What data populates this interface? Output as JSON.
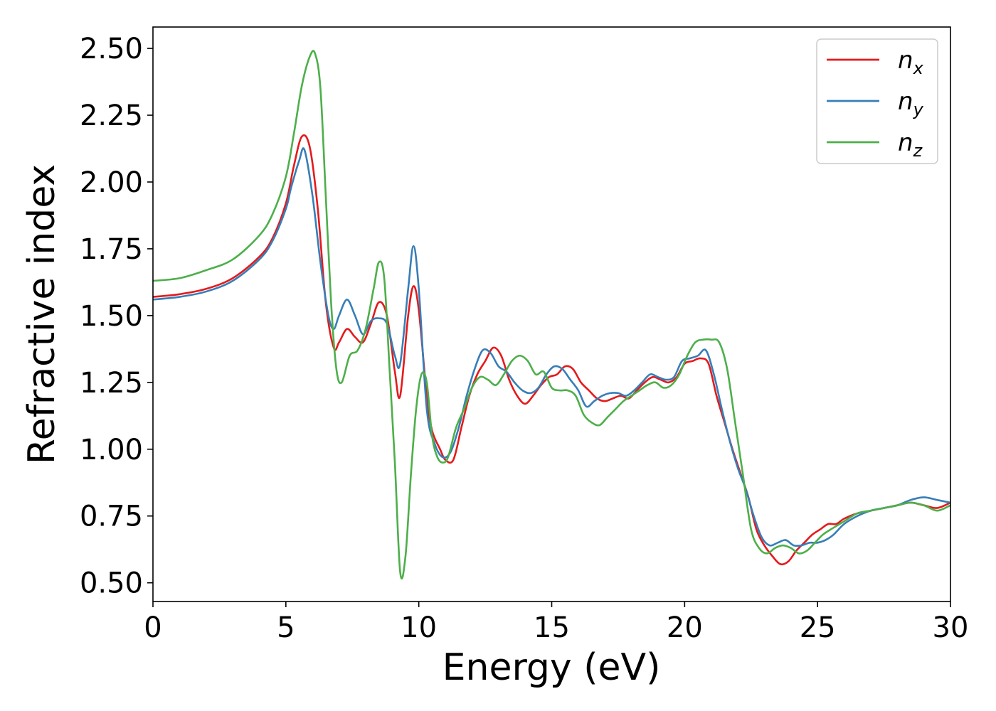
{
  "chart_data": {
    "type": "line",
    "title": "",
    "xlabel": "Energy (eV)",
    "ylabel": "Refractive index",
    "xlim": [
      0,
      30
    ],
    "ylim": [
      0.43,
      2.58
    ],
    "xticks": [
      0,
      5,
      10,
      15,
      20,
      25,
      30
    ],
    "xtick_labels": [
      "0",
      "5",
      "10",
      "15",
      "20",
      "25",
      "30"
    ],
    "yticks": [
      0.5,
      0.75,
      1.0,
      1.25,
      1.5,
      1.75,
      2.0,
      2.25,
      2.5
    ],
    "ytick_labels": [
      "0.50",
      "0.75",
      "1.00",
      "1.25",
      "1.50",
      "1.75",
      "2.00",
      "2.25",
      "2.50"
    ],
    "grid": false,
    "legend_position": "top-right",
    "series": [
      {
        "name": "n",
        "subscript": "x",
        "color": "#e41a1c",
        "x": [
          0,
          1,
          2,
          3,
          4,
          4.5,
          5,
          5.3,
          5.6,
          5.9,
          6.2,
          6.5,
          6.8,
          7.0,
          7.3,
          7.6,
          7.9,
          8.2,
          8.5,
          8.8,
          9.1,
          9.3,
          9.6,
          9.8,
          10.0,
          10.3,
          10.5,
          10.8,
          11.0,
          11.3,
          11.6,
          11.9,
          12.2,
          12.5,
          12.8,
          13.1,
          13.4,
          13.7,
          14.0,
          14.3,
          14.6,
          14.9,
          15.2,
          15.5,
          15.8,
          16.1,
          16.4,
          16.7,
          17.0,
          17.3,
          17.6,
          17.9,
          18.2,
          18.5,
          18.8,
          19.1,
          19.4,
          19.7,
          20.0,
          20.3,
          20.6,
          20.9,
          21.2,
          21.5,
          21.8,
          22.1,
          22.4,
          22.7,
          23.0,
          23.3,
          23.6,
          23.9,
          24.2,
          24.5,
          24.8,
          25.1,
          25.4,
          25.7,
          26.0,
          26.5,
          27.0,
          27.5,
          28.0,
          28.5,
          29.0,
          29.5,
          30.0
        ],
        "y": [
          1.57,
          1.58,
          1.6,
          1.64,
          1.72,
          1.79,
          1.92,
          2.06,
          2.17,
          2.13,
          1.9,
          1.55,
          1.38,
          1.4,
          1.45,
          1.42,
          1.4,
          1.47,
          1.55,
          1.5,
          1.29,
          1.2,
          1.5,
          1.61,
          1.52,
          1.2,
          1.07,
          1.0,
          0.96,
          0.96,
          1.08,
          1.2,
          1.28,
          1.33,
          1.38,
          1.35,
          1.26,
          1.2,
          1.17,
          1.2,
          1.24,
          1.27,
          1.28,
          1.31,
          1.3,
          1.25,
          1.22,
          1.19,
          1.18,
          1.19,
          1.2,
          1.19,
          1.22,
          1.25,
          1.27,
          1.26,
          1.25,
          1.27,
          1.32,
          1.33,
          1.34,
          1.32,
          1.2,
          1.1,
          1.0,
          0.91,
          0.82,
          0.7,
          0.64,
          0.6,
          0.57,
          0.58,
          0.62,
          0.65,
          0.68,
          0.7,
          0.72,
          0.72,
          0.74,
          0.76,
          0.77,
          0.78,
          0.79,
          0.8,
          0.79,
          0.78,
          0.8
        ]
      },
      {
        "name": "n",
        "subscript": "y",
        "color": "#377eb8",
        "x": [
          0,
          1,
          2,
          3,
          4,
          4.5,
          5,
          5.2,
          5.5,
          5.7,
          6.0,
          6.3,
          6.6,
          6.8,
          7.0,
          7.3,
          7.6,
          7.9,
          8.2,
          8.5,
          8.8,
          9.1,
          9.3,
          9.6,
          9.8,
          10.0,
          10.3,
          10.6,
          10.9,
          11.2,
          11.5,
          11.8,
          12.1,
          12.4,
          12.7,
          13.0,
          13.3,
          13.6,
          13.9,
          14.2,
          14.5,
          14.8,
          15.1,
          15.4,
          15.7,
          16.0,
          16.3,
          16.6,
          16.9,
          17.2,
          17.5,
          17.8,
          18.1,
          18.4,
          18.7,
          19.0,
          19.3,
          19.6,
          19.9,
          20.2,
          20.5,
          20.8,
          21.1,
          21.4,
          21.7,
          22.0,
          22.3,
          22.6,
          22.9,
          23.2,
          23.5,
          23.8,
          24.1,
          24.4,
          24.7,
          25.0,
          25.3,
          25.6,
          26.0,
          26.5,
          27.0,
          27.5,
          28.0,
          28.5,
          29.0,
          29.5,
          30.0
        ],
        "y": [
          1.56,
          1.57,
          1.59,
          1.63,
          1.71,
          1.78,
          1.9,
          1.98,
          2.08,
          2.12,
          1.95,
          1.7,
          1.5,
          1.45,
          1.5,
          1.56,
          1.5,
          1.43,
          1.48,
          1.49,
          1.47,
          1.35,
          1.32,
          1.6,
          1.76,
          1.6,
          1.15,
          1.02,
          0.97,
          0.99,
          1.08,
          1.2,
          1.3,
          1.37,
          1.36,
          1.31,
          1.29,
          1.25,
          1.22,
          1.21,
          1.23,
          1.28,
          1.31,
          1.3,
          1.26,
          1.22,
          1.16,
          1.18,
          1.2,
          1.21,
          1.21,
          1.2,
          1.22,
          1.25,
          1.28,
          1.27,
          1.26,
          1.27,
          1.33,
          1.34,
          1.35,
          1.37,
          1.28,
          1.15,
          1.03,
          0.93,
          0.85,
          0.75,
          0.67,
          0.64,
          0.65,
          0.66,
          0.64,
          0.64,
          0.65,
          0.65,
          0.66,
          0.68,
          0.72,
          0.75,
          0.77,
          0.78,
          0.79,
          0.81,
          0.82,
          0.81,
          0.8
        ]
      },
      {
        "name": "n",
        "subscript": "z",
        "color": "#4daf4a",
        "x": [
          0,
          1,
          2,
          3,
          4,
          4.5,
          5,
          5.3,
          5.6,
          5.9,
          6.1,
          6.3,
          6.5,
          6.7,
          6.9,
          7.1,
          7.4,
          7.7,
          8.0,
          8.3,
          8.5,
          8.7,
          8.9,
          9.1,
          9.3,
          9.5,
          9.7,
          9.9,
          10.1,
          10.3,
          10.5,
          10.7,
          10.9,
          11.1,
          11.4,
          11.7,
          12.0,
          12.3,
          12.6,
          12.9,
          13.2,
          13.5,
          13.8,
          14.1,
          14.4,
          14.7,
          15.0,
          15.3,
          15.6,
          15.9,
          16.2,
          16.5,
          16.8,
          17.1,
          17.4,
          17.7,
          18.0,
          18.3,
          18.6,
          18.9,
          19.2,
          19.5,
          19.8,
          20.1,
          20.4,
          20.7,
          21.0,
          21.3,
          21.6,
          21.9,
          22.2,
          22.5,
          22.8,
          23.1,
          23.4,
          23.7,
          24.0,
          24.3,
          24.6,
          24.9,
          25.2,
          25.5,
          26.0,
          26.5,
          27.0,
          27.5,
          28.0,
          28.5,
          29.0,
          29.5,
          30.0
        ],
        "y": [
          1.63,
          1.64,
          1.67,
          1.71,
          1.8,
          1.88,
          2.02,
          2.18,
          2.36,
          2.47,
          2.48,
          2.35,
          1.95,
          1.55,
          1.3,
          1.25,
          1.35,
          1.37,
          1.45,
          1.6,
          1.7,
          1.64,
          1.3,
          0.95,
          0.54,
          0.6,
          0.9,
          1.15,
          1.28,
          1.25,
          1.05,
          0.97,
          0.95,
          0.97,
          1.08,
          1.15,
          1.23,
          1.27,
          1.26,
          1.24,
          1.28,
          1.33,
          1.35,
          1.33,
          1.28,
          1.29,
          1.23,
          1.22,
          1.22,
          1.2,
          1.13,
          1.1,
          1.09,
          1.12,
          1.15,
          1.18,
          1.2,
          1.22,
          1.24,
          1.25,
          1.23,
          1.24,
          1.28,
          1.35,
          1.4,
          1.41,
          1.41,
          1.4,
          1.3,
          1.1,
          0.9,
          0.7,
          0.63,
          0.61,
          0.63,
          0.64,
          0.63,
          0.61,
          0.62,
          0.65,
          0.68,
          0.7,
          0.73,
          0.76,
          0.77,
          0.78,
          0.79,
          0.8,
          0.79,
          0.77,
          0.79
        ]
      }
    ]
  }
}
